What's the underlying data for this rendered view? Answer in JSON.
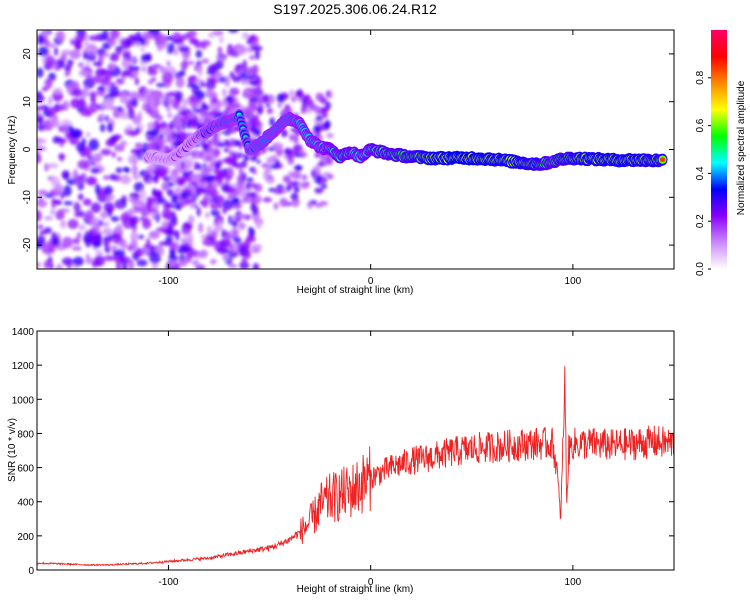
{
  "title": "S197.2025.306.06.24.R12",
  "chart_data": [
    {
      "type": "heatmap",
      "name": "spectrogram",
      "xlabel": "Height of straight line (km)",
      "ylabel": "Frequency (Hz)",
      "xlim": [
        -165,
        150
      ],
      "ylim": [
        -25,
        25
      ],
      "xticks": [
        -100,
        0,
        100
      ],
      "yticks": [
        -20,
        -10,
        0,
        10,
        20
      ],
      "colorbar": {
        "label": "Normalized spectral amplitude",
        "range": [
          0,
          1
        ],
        "ticks": [
          0.0,
          0.2,
          0.4,
          0.6,
          0.8
        ],
        "tick_labels": [
          "0.0",
          "0.2",
          "0.4",
          "0.6",
          "0.8"
        ],
        "colormap": [
          "#ffffff",
          "#cc88ff",
          "#8800ff",
          "#0000ff",
          "#00ffff",
          "#00ff00",
          "#ffff00",
          "#ff8800",
          "#ff0000",
          "#ff0066"
        ]
      },
      "ridge": [
        [
          -110,
          -1.5,
          0.25
        ],
        [
          -100,
          -2,
          0.25
        ],
        [
          -95,
          -1,
          0.3
        ],
        [
          -90,
          1,
          0.3
        ],
        [
          -85,
          3,
          0.35
        ],
        [
          -80,
          4,
          0.5
        ],
        [
          -75,
          5.5,
          0.5
        ],
        [
          -70,
          6,
          0.55
        ],
        [
          -65,
          7,
          0.5
        ],
        [
          -60,
          0,
          0.5
        ],
        [
          -55,
          1,
          0.55
        ],
        [
          -50,
          3,
          0.55
        ],
        [
          -45,
          5,
          0.55
        ],
        [
          -40,
          6.5,
          0.55
        ],
        [
          -35,
          5.5,
          0.6
        ],
        [
          -30,
          2,
          0.6
        ],
        [
          -25,
          0.5,
          0.6
        ],
        [
          -20,
          0,
          0.65
        ],
        [
          -15,
          -1.5,
          0.7
        ],
        [
          -10,
          -0.5,
          0.7
        ],
        [
          -5,
          -1.5,
          0.65
        ],
        [
          0,
          0,
          0.7
        ],
        [
          10,
          -1,
          0.75
        ],
        [
          20,
          -1.5,
          0.8
        ],
        [
          30,
          -1.8,
          0.9
        ],
        [
          40,
          -1.8,
          0.95
        ],
        [
          50,
          -1.8,
          0.95
        ],
        [
          60,
          -2,
          0.9
        ],
        [
          70,
          -2.5,
          0.9
        ],
        [
          80,
          -3,
          0.85
        ],
        [
          85,
          -3,
          0.8
        ],
        [
          90,
          -2.5,
          0.75
        ],
        [
          95,
          -2,
          0.8
        ],
        [
          100,
          -1.8,
          0.85
        ],
        [
          110,
          -2,
          0.9
        ],
        [
          120,
          -2.2,
          0.9
        ],
        [
          130,
          -2.2,
          0.9
        ],
        [
          145,
          -2.3,
          0.85
        ]
      ]
    },
    {
      "type": "line",
      "name": "snr",
      "xlabel": "Height of straight line (km)",
      "ylabel": "SNR (10 * v/v)",
      "xlim": [
        -165,
        150
      ],
      "ylim": [
        0,
        1400
      ],
      "xticks": [
        -100,
        0,
        100
      ],
      "yticks": [
        0,
        200,
        400,
        600,
        800,
        1000,
        1200,
        1400
      ],
      "color": "#ee2222",
      "x": [
        -165,
        -150,
        -140,
        -130,
        -120,
        -110,
        -100,
        -90,
        -80,
        -70,
        -60,
        -50,
        -45,
        -40,
        -35,
        -30,
        -27,
        -25,
        -22,
        -20,
        -17,
        -15,
        -10,
        -5,
        0,
        5,
        10,
        15,
        20,
        25,
        30,
        40,
        50,
        60,
        70,
        80,
        85,
        88,
        90,
        92,
        94,
        95,
        96,
        97,
        98,
        100,
        105,
        110,
        120,
        130,
        140,
        150
      ],
      "values": [
        40,
        35,
        30,
        30,
        35,
        40,
        50,
        60,
        70,
        90,
        110,
        130,
        150,
        180,
        220,
        280,
        330,
        380,
        400,
        420,
        430,
        440,
        460,
        500,
        540,
        570,
        600,
        620,
        640,
        650,
        660,
        690,
        710,
        720,
        730,
        740,
        740,
        740,
        740,
        600,
        300,
        700,
        1100,
        400,
        700,
        740,
        740,
        740,
        730,
        740,
        750,
        740
      ]
    }
  ]
}
